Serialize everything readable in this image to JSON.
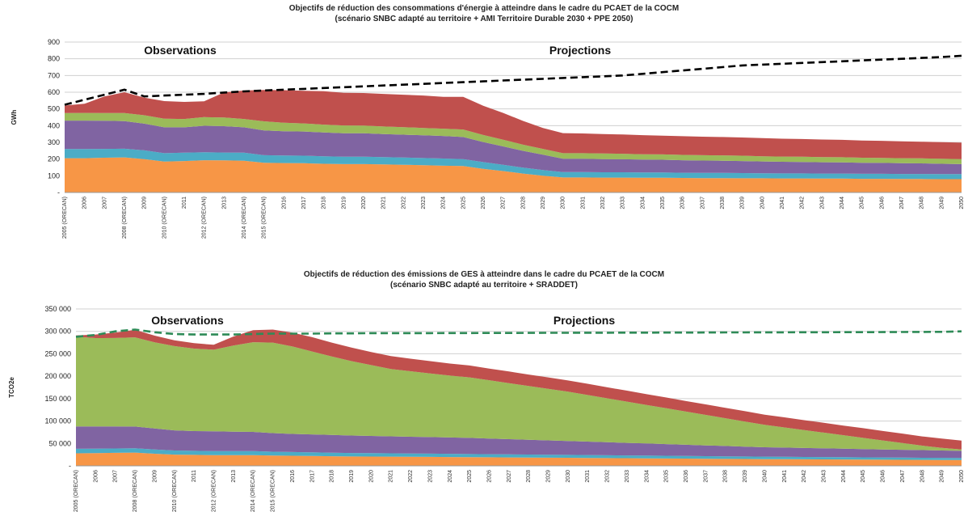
{
  "chart_data": [
    {
      "type": "area",
      "title": "Objectifs  de réduction des consommations d'énergie à atteindre dans le cadre du PCAET de la COCM",
      "subtitle": "(scénario SNBC adapté au territoire + AMI Territoire Durable 2030 + PPE 2050)",
      "ylabel": "GWh",
      "ylim": [
        0,
        900
      ],
      "ytick_labels": [
        "-",
        "100",
        "200",
        "300",
        "400",
        "500",
        "600",
        "700",
        "800",
        "900"
      ],
      "annotations": [
        "Observations",
        "Projections"
      ],
      "grid": true,
      "stacked": true,
      "categories": [
        "2005 (ORECAN)",
        "2006",
        "2007",
        "2008 (ORECAN)",
        "2009",
        "2010 (ORECAN)",
        "2011",
        "2012 (ORECAN)",
        "2013",
        "2014 (ORECAN)",
        "2015 (ORECAN)",
        "2016",
        "2017",
        "2018",
        "2019",
        "2020",
        "2021",
        "2022",
        "2023",
        "2024",
        "2025",
        "2026",
        "2027",
        "2028",
        "2029",
        "2030",
        "2031",
        "2032",
        "2033",
        "2034",
        "2035",
        "2036",
        "2037",
        "2038",
        "2039",
        "2040",
        "2041",
        "2042",
        "2043",
        "2044",
        "2045",
        "2046",
        "2047",
        "2048",
        "2049",
        "2050"
      ],
      "series": [
        {
          "color": "#f79646",
          "values": [
            205,
            205,
            208,
            210,
            200,
            185,
            188,
            193,
            192,
            190,
            178,
            176,
            175,
            172,
            170,
            170,
            168,
            166,
            163,
            160,
            158,
            142,
            128,
            113,
            100,
            90,
            90,
            89,
            89,
            88,
            88,
            87,
            86,
            86,
            85,
            85,
            84,
            84,
            83,
            83,
            82,
            82,
            81,
            81,
            80,
            80
          ]
        },
        {
          "color": "#4bacc6",
          "values": [
            55,
            55,
            53,
            52,
            52,
            50,
            50,
            48,
            47,
            48,
            45,
            45,
            45,
            45,
            44,
            44,
            44,
            43,
            43,
            43,
            42,
            40,
            38,
            36,
            34,
            32,
            32,
            32,
            32,
            32,
            32,
            31,
            31,
            31,
            31,
            30,
            30,
            30,
            30,
            30,
            30,
            30,
            30,
            30,
            30,
            30
          ]
        },
        {
          "color": "#8064a2",
          "values": [
            170,
            170,
            168,
            165,
            160,
            155,
            152,
            158,
            158,
            152,
            148,
            146,
            145,
            142,
            140,
            140,
            138,
            137,
            136,
            135,
            132,
            120,
            110,
            100,
            92,
            80,
            80,
            79,
            78,
            77,
            76,
            75,
            74,
            73,
            72,
            71,
            70,
            69,
            68,
            67,
            66,
            65,
            64,
            63,
            62,
            60
          ]
        },
        {
          "color": "#9bbb59",
          "values": [
            45,
            46,
            46,
            48,
            50,
            52,
            50,
            52,
            52,
            50,
            55,
            50,
            48,
            47,
            47,
            46,
            45,
            45,
            44,
            44,
            45,
            42,
            40,
            37,
            35,
            33,
            33,
            33,
            33,
            32,
            32,
            32,
            32,
            32,
            32,
            31,
            31,
            31,
            31,
            31,
            30,
            30,
            30,
            30,
            30,
            30
          ]
        },
        {
          "color": "#c0504d",
          "values": [
            45,
            55,
            100,
            125,
            105,
            105,
            102,
            95,
            150,
            170,
            187,
            195,
            195,
            200,
            195,
            195,
            195,
            194,
            194,
            190,
            195,
            175,
            160,
            142,
            125,
            120,
            118,
            117,
            115,
            114,
            112,
            112,
            111,
            110,
            109,
            108,
            107,
            106,
            105,
            104,
            103,
            102,
            101,
            100,
            99,
            98
          ]
        }
      ],
      "objective_line": {
        "color": "#000000",
        "style": "dashed",
        "values": [
          525,
          555,
          585,
          615,
          575,
          580,
          585,
          590,
          598,
          605,
          610,
          615,
          620,
          625,
          630,
          635,
          640,
          645,
          650,
          655,
          660,
          665,
          670,
          675,
          680,
          685,
          690,
          695,
          700,
          710,
          720,
          730,
          740,
          750,
          760,
          765,
          770,
          775,
          780,
          785,
          790,
          795,
          800,
          805,
          810,
          818
        ]
      }
    },
    {
      "type": "area",
      "title": "Objectifs  de réduction des émissions de GES à atteindre dans le cadre du PCAET de la COCM",
      "subtitle": "(scénario SNBC adapté au territoire + SRADDET)",
      "ylabel": "TCO2e",
      "ylim": [
        0,
        350000
      ],
      "ytick_labels": [
        "-",
        "50 000",
        "100 000",
        "150 000",
        "200 000",
        "250 000",
        "300 000",
        "350 000"
      ],
      "annotations": [
        "Observations",
        "Projections"
      ],
      "grid": true,
      "stacked": true,
      "categories": [
        "2005 (ORECAN)",
        "2006",
        "2007",
        "2008 (ORECAN)",
        "2009",
        "2010 (ORECAN)",
        "2011",
        "2012 (ORECAN)",
        "2013",
        "2014 (ORECAN)",
        "2015 (ORECAN)",
        "2016",
        "2017",
        "2018",
        "2019",
        "2020",
        "2021",
        "2022",
        "2023",
        "2024",
        "2025",
        "2026",
        "2027",
        "2028",
        "2029",
        "2030",
        "2031",
        "2032",
        "2033",
        "2034",
        "2035",
        "2036",
        "2037",
        "2038",
        "2039",
        "2040",
        "2041",
        "2042",
        "2043",
        "2044",
        "2045",
        "2046",
        "2047",
        "2048",
        "2049",
        "2050"
      ],
      "series": [
        {
          "color": "#f79646",
          "values": [
            28000,
            28500,
            29000,
            29500,
            27000,
            25000,
            24500,
            24000,
            24000,
            24000,
            23000,
            22500,
            22000,
            21500,
            21000,
            20800,
            20500,
            20200,
            20000,
            19700,
            19400,
            19100,
            18800,
            18500,
            18200,
            18000,
            17700,
            17400,
            17100,
            16800,
            16500,
            16200,
            15900,
            15600,
            15300,
            15000,
            14800,
            14600,
            14400,
            14200,
            14000,
            13800,
            13600,
            13400,
            13200,
            13000
          ]
        },
        {
          "color": "#4bacc6",
          "values": [
            10000,
            10000,
            9800,
            9700,
            9500,
            9200,
            9100,
            9000,
            8900,
            8800,
            8500,
            8300,
            8100,
            7900,
            7700,
            7500,
            7400,
            7300,
            7200,
            7100,
            7000,
            6900,
            6800,
            6700,
            6600,
            6500,
            6400,
            6300,
            6200,
            6100,
            6000,
            5900,
            5800,
            5700,
            5600,
            5500,
            5400,
            5300,
            5200,
            5100,
            5000,
            4900,
            4800,
            4700,
            4600,
            4500
          ]
        },
        {
          "color": "#8064a2",
          "values": [
            50000,
            49500,
            49000,
            48500,
            47000,
            45000,
            44000,
            44000,
            43500,
            43000,
            41500,
            40500,
            40000,
            39500,
            39000,
            38500,
            38000,
            37500,
            37000,
            36500,
            36000,
            35000,
            34000,
            33000,
            32000,
            31000,
            30000,
            29000,
            28000,
            27000,
            26000,
            25000,
            24000,
            23000,
            22000,
            21000,
            20500,
            20000,
            19500,
            19000,
            18500,
            18000,
            17500,
            17000,
            16500,
            16000
          ]
        },
        {
          "color": "#9bbb59",
          "values": [
            200000,
            197000,
            197500,
            199000,
            192000,
            188000,
            184000,
            182000,
            192000,
            200000,
            202000,
            195000,
            185000,
            175000,
            166000,
            158000,
            150000,
            146000,
            142000,
            138000,
            135000,
            130000,
            125000,
            120000,
            115000,
            110000,
            104000,
            98000,
            92000,
            86000,
            80000,
            74000,
            68000,
            62000,
            56000,
            50000,
            45000,
            40000,
            35000,
            30000,
            25000,
            20000,
            15000,
            10000,
            6000,
            3000
          ]
        },
        {
          "color": "#c0504d",
          "values": [
            3000,
            8000,
            12000,
            17000,
            15000,
            13000,
            12000,
            11000,
            20000,
            27000,
            29000,
            31000,
            32000,
            31000,
            30000,
            29000,
            29000,
            28000,
            27500,
            27000,
            26500,
            26000,
            26000,
            25500,
            25500,
            25000,
            25000,
            24500,
            24500,
            24000,
            24000,
            23500,
            23500,
            23000,
            23000,
            22500,
            22500,
            22000,
            22000,
            21500,
            21500,
            21000,
            21000,
            20500,
            20500,
            20000
          ]
        }
      ],
      "objective_line": {
        "color": "#2e8b57",
        "style": "dashed",
        "values": [
          288000,
          292000,
          300000,
          304000,
          298000,
          294000,
          293000,
          293000,
          293000,
          294000,
          295000,
          295000,
          295000,
          295500,
          295500,
          296000,
          296000,
          296000,
          296000,
          296200,
          296300,
          296400,
          296500,
          296600,
          296700,
          296800,
          296900,
          297000,
          297100,
          297200,
          297300,
          297400,
          297500,
          297600,
          297700,
          297800,
          297900,
          298000,
          298100,
          298200,
          298300,
          298400,
          298500,
          298700,
          299000,
          300000
        ]
      }
    }
  ]
}
